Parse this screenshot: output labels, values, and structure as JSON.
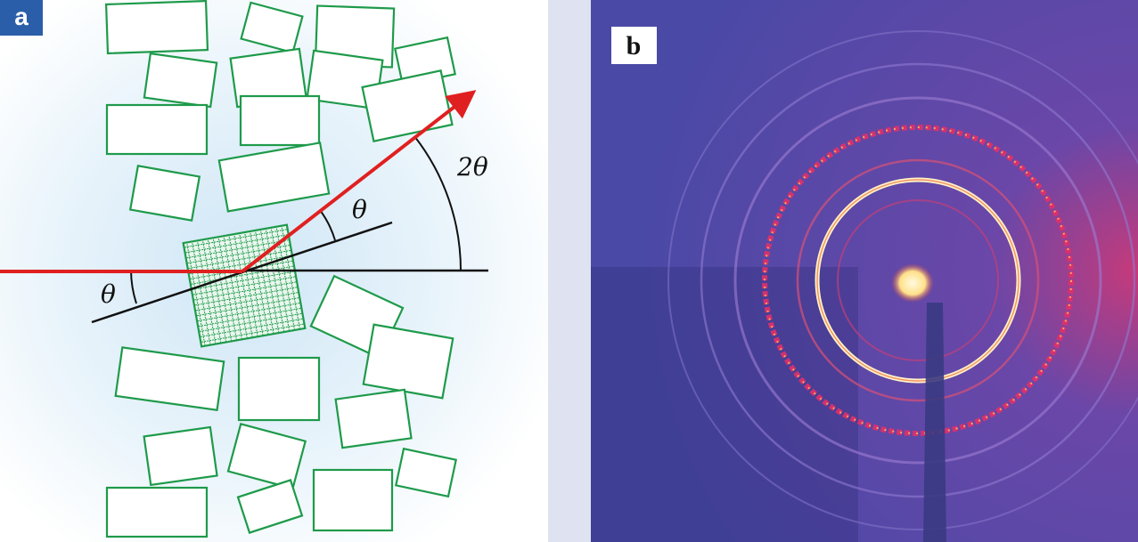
{
  "panel_a": {
    "label": "a",
    "incident_angle": "θ",
    "reflected_angle": "θ",
    "scattering_angle": "2θ"
  },
  "panel_b": {
    "label": "b"
  }
}
